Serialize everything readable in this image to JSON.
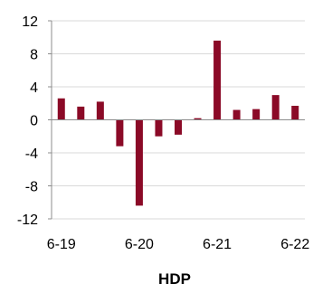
{
  "chart_data": {
    "type": "bar",
    "title": "HDP",
    "xlabel": "",
    "ylabel": "",
    "categories": [
      "6-19",
      "",
      "",
      "",
      "6-20",
      "",
      "",
      "",
      "6-21",
      "",
      "",
      "",
      "6-22"
    ],
    "x_tick_labels": [
      "6-19",
      "6-20",
      "6-21",
      "6-22"
    ],
    "values": [
      2.6,
      1.6,
      2.2,
      -3.2,
      -10.4,
      -2.0,
      -1.8,
      0.2,
      9.6,
      1.2,
      1.3,
      3.0,
      1.7
    ],
    "ylim": [
      -12,
      12
    ],
    "y_ticks": [
      12,
      8,
      4,
      0,
      -4,
      -8,
      -12
    ],
    "grid": "horizontal",
    "legend": "none",
    "colors": {
      "bar": "#8b0a27",
      "grid": "#d9d9d9",
      "axis": "#8c8c8c"
    }
  }
}
